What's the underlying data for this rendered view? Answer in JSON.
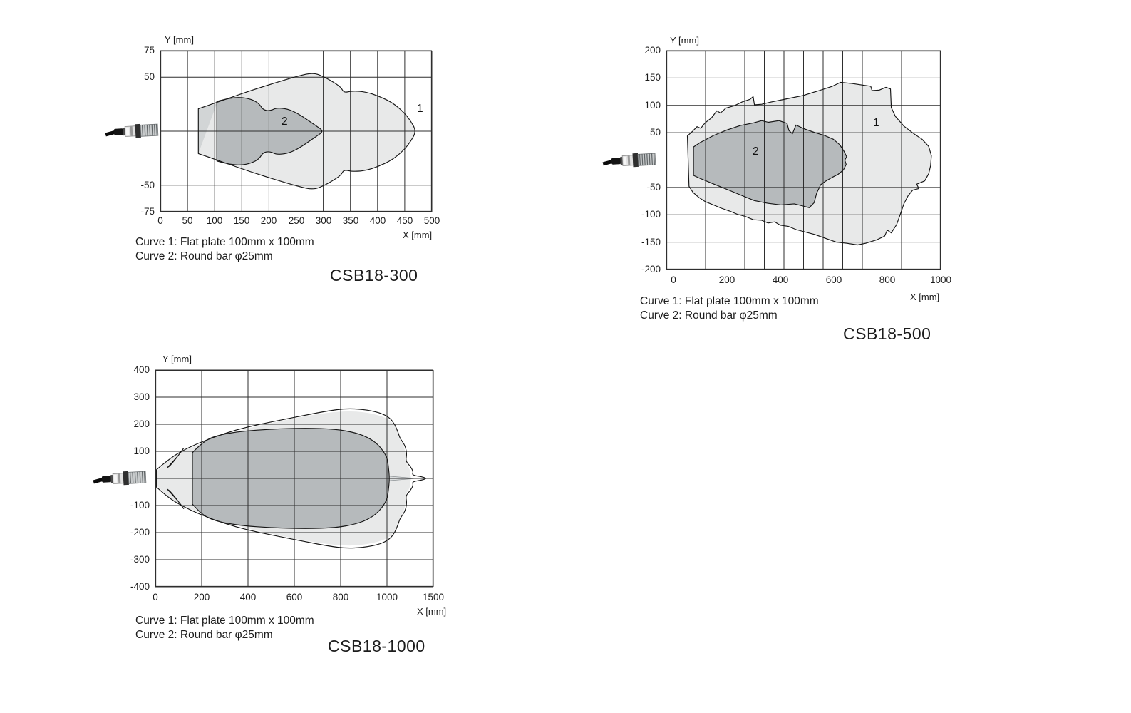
{
  "icons": {
    "sensor": "ultrasonic-sensor-side-photo"
  },
  "colors": {
    "curve1_fill": "#e8e9e9",
    "curve2_fill": "#b6babc",
    "near_zone_fill": "#d2d5d6",
    "spike_fill": "#dcdfe0",
    "grid": "#2e2e2e",
    "stroke": "#161616",
    "text": "#1c1c1c",
    "background": "#ffffff"
  },
  "chart_data": [
    {
      "title": "CSB18-300",
      "type": "area",
      "xlabel": "X [mm]",
      "ylabel": "Y [mm]",
      "xlim": [
        0,
        500
      ],
      "ylim": [
        -75,
        75
      ],
      "grid": "on",
      "legend_position": "none",
      "x_tick_labels": [
        "0",
        "50",
        "100",
        "150",
        "200",
        "250",
        "300",
        "350",
        "400",
        "450",
        "500"
      ],
      "y_tick_labels": [
        "75",
        "50",
        "-50",
        "-75"
      ],
      "caption": [
        "Curve 1: Flat plate 100mm x 100mm",
        "Curve 2: Round bar φ25mm"
      ],
      "series": [
        {
          "name": "Curve 1: Flat plate 100mm x 100mm",
          "label": "1",
          "symmetric": true,
          "pts": [
            [
              70,
              21
            ],
            [
              115,
              29
            ],
            [
              165,
              38
            ],
            [
              215,
              46
            ],
            [
              255,
              52
            ],
            [
              282,
              55
            ],
            [
              302,
              51
            ],
            [
              322,
              45
            ],
            [
              333,
              41
            ],
            [
              338,
              36
            ],
            [
              354,
              38
            ],
            [
              378,
              37
            ],
            [
              402,
              33
            ],
            [
              427,
              27
            ],
            [
              448,
              18
            ],
            [
              462,
              9
            ],
            [
              471,
              0
            ]
          ]
        },
        {
          "name": "near zone band",
          "label": "",
          "symmetric": true,
          "pts": [
            [
              70,
              21
            ],
            [
              104,
              26
            ]
          ]
        },
        {
          "name": "Curve 2: Round bar φ25mm",
          "label": "2",
          "symmetric": true,
          "pts": [
            [
              104,
              28
            ],
            [
              126,
              31
            ],
            [
              148,
              32
            ],
            [
              168,
              30
            ],
            [
              182,
              26
            ],
            [
              189,
              20
            ],
            [
              202,
              19
            ],
            [
              214,
              22
            ],
            [
              234,
              21
            ],
            [
              252,
              17
            ],
            [
              270,
              11
            ],
            [
              287,
              5
            ],
            [
              301,
              0
            ]
          ]
        }
      ]
    },
    {
      "title": "CSB18-500",
      "type": "area",
      "xlabel": "X [mm]",
      "ylabel": "Y [mm]",
      "xlim": [
        0,
        1000
      ],
      "ylim": [
        -200,
        200
      ],
      "grid": "on",
      "legend_position": "none",
      "x_tick_labels": [
        "0",
        "200",
        "400",
        "600",
        "800",
        "1000"
      ],
      "y_tick_labels": [
        "200",
        "150",
        "100",
        "50",
        "-50",
        "-100",
        "-150",
        "-200"
      ],
      "caption": [
        "Curve 1: Flat plate 100mm x 100mm",
        "Curve 2: Round bar φ25mm"
      ],
      "series": [
        {
          "name": "Curve 1: Flat plate 100mm x 100mm",
          "label": "1",
          "symmetric": false,
          "pts": [
            [
              52,
              44
            ],
            [
              70,
              52
            ],
            [
              88,
              61
            ],
            [
              102,
              58
            ],
            [
              118,
              68
            ],
            [
              142,
              77
            ],
            [
              162,
              90
            ],
            [
              176,
              86
            ],
            [
              196,
              95
            ],
            [
              226,
              99
            ],
            [
              256,
              106
            ],
            [
              286,
              111
            ],
            [
              298,
              116
            ],
            [
              303,
              101
            ],
            [
              330,
              102
            ],
            [
              365,
              106
            ],
            [
              425,
              112
            ],
            [
              485,
              118
            ],
            [
              545,
              127
            ],
            [
              595,
              135
            ],
            [
              625,
              142
            ],
            [
              668,
              140
            ],
            [
              710,
              137
            ],
            [
              738,
              135
            ],
            [
              743,
              127
            ],
            [
              770,
              128
            ],
            [
              795,
              133
            ],
            [
              812,
              130
            ],
            [
              815,
              96
            ],
            [
              830,
              80
            ],
            [
              862,
              62
            ],
            [
              900,
              48
            ],
            [
              930,
              38
            ],
            [
              955,
              25
            ],
            [
              965,
              8
            ],
            [
              962,
              -10
            ],
            [
              955,
              -25
            ],
            [
              940,
              -38
            ],
            [
              910,
              -44
            ],
            [
              918,
              -52
            ],
            [
              895,
              -55
            ],
            [
              878,
              -65
            ],
            [
              862,
              -80
            ],
            [
              848,
              -100
            ],
            [
              835,
              -118
            ],
            [
              815,
              -133
            ],
            [
              800,
              -128
            ],
            [
              790,
              -139
            ],
            [
              759,
              -146
            ],
            [
              719,
              -152
            ],
            [
              689,
              -155
            ],
            [
              649,
              -152
            ],
            [
              609,
              -150
            ],
            [
              569,
              -143
            ],
            [
              529,
              -136
            ],
            [
              489,
              -131
            ],
            [
              459,
              -127
            ],
            [
              429,
              -121
            ],
            [
              399,
              -119
            ],
            [
              379,
              -113
            ],
            [
              354,
              -115
            ],
            [
              329,
              -110
            ],
            [
              299,
              -109
            ],
            [
              269,
              -103
            ],
            [
              239,
              -99
            ],
            [
              209,
              -93
            ],
            [
              179,
              -88
            ],
            [
              149,
              -82
            ],
            [
              119,
              -76
            ],
            [
              94,
              -68
            ],
            [
              73,
              -59
            ],
            [
              58,
              -48
            ]
          ]
        },
        {
          "name": "Curve 2: Round bar φ25mm",
          "label": "2",
          "symmetric": false,
          "pts": [
            [
              75,
              24
            ],
            [
              100,
              32
            ],
            [
              150,
              45
            ],
            [
              200,
              55
            ],
            [
              250,
              63
            ],
            [
              300,
              68
            ],
            [
              330,
              72
            ],
            [
              355,
              69
            ],
            [
              395,
              72
            ],
            [
              425,
              67
            ],
            [
              432,
              54
            ],
            [
              445,
              48
            ],
            [
              458,
              64
            ],
            [
              490,
              57
            ],
            [
              530,
              50
            ],
            [
              565,
              45
            ],
            [
              598,
              38
            ],
            [
              622,
              28
            ],
            [
              638,
              16
            ],
            [
              648,
              6
            ],
            [
              641,
              0
            ],
            [
              646,
              -8
            ],
            [
              636,
              -18
            ],
            [
              616,
              -26
            ],
            [
              596,
              -31
            ],
            [
              571,
              -38
            ],
            [
              551,
              -45
            ],
            [
              536,
              -60
            ],
            [
              526,
              -78
            ],
            [
              508,
              -87
            ],
            [
              485,
              -84
            ],
            [
              452,
              -80
            ],
            [
              402,
              -82
            ],
            [
              352,
              -79
            ],
            [
              302,
              -74
            ],
            [
              252,
              -64
            ],
            [
              202,
              -54
            ],
            [
              152,
              -44
            ],
            [
              102,
              -34
            ],
            [
              75,
              -28
            ]
          ]
        }
      ]
    },
    {
      "title": "CSB18-1000",
      "type": "area",
      "xlabel": "X [mm]",
      "ylabel": "Y [mm]",
      "xlim": [
        0,
        1500
      ],
      "ylim": [
        -400,
        400
      ],
      "grid": "on",
      "legend_position": "none",
      "x_tick_labels": [
        "0",
        "200",
        "400",
        "600",
        "800",
        "1000",
        "1500"
      ],
      "y_tick_labels": [
        "400",
        "300",
        "200",
        "100",
        "-100",
        "-200",
        "-300",
        "-400"
      ],
      "caption": [
        "Curve 1: Flat plate 100mm x 100mm",
        "Curve 2: Round bar φ25mm"
      ],
      "series": [
        {
          "name": "Curve 1: Flat plate 100mm x 100mm (outer boundary)",
          "label": "",
          "symmetric": true,
          "pts": [
            [
              5,
              32
            ],
            [
              70,
              80
            ],
            [
              150,
              117
            ],
            [
              250,
              152
            ],
            [
              350,
              180
            ],
            [
              450,
              200
            ],
            [
              550,
              217
            ],
            [
              650,
              234
            ],
            [
              750,
              250
            ],
            [
              820,
              258
            ],
            [
              900,
              255
            ],
            [
              970,
              243
            ],
            [
              1030,
              224
            ],
            [
              1085,
              199
            ],
            [
              1120,
              170
            ],
            [
              1140,
              148
            ],
            [
              1195,
              122
            ],
            [
              1215,
              90
            ],
            [
              1200,
              64
            ],
            [
              1255,
              44
            ],
            [
              1285,
              24
            ],
            [
              1270,
              12
            ],
            [
              1380,
              6
            ],
            [
              1430,
              0
            ]
          ]
        },
        {
          "name": "Curve 1 inner filled region",
          "label": "",
          "symmetric": true,
          "pts": [
            [
              8,
              28
            ],
            [
              60,
              72
            ],
            [
              120,
              103
            ],
            [
              200,
              130
            ],
            [
              300,
              161
            ],
            [
              400,
              185
            ],
            [
              500,
              205
            ],
            [
              600,
              222
            ],
            [
              700,
              238
            ],
            [
              800,
              248
            ],
            [
              880,
              247
            ],
            [
              950,
              237
            ],
            [
              1020,
              220
            ],
            [
              1080,
              196
            ],
            [
              1110,
              172
            ],
            [
              1130,
              150
            ],
            [
              1180,
              122
            ],
            [
              1205,
              88
            ],
            [
              1195,
              62
            ],
            [
              1235,
              42
            ],
            [
              1255,
              22
            ],
            [
              1250,
              12
            ],
            [
              1265,
              0
            ]
          ]
        },
        {
          "name": "Curve 1 side lobe (top)",
          "label": "",
          "symmetric": false,
          "pts": [
            [
              52,
              40
            ],
            [
              80,
              66
            ],
            [
              108,
              94
            ],
            [
              126,
              116
            ],
            [
              112,
              100
            ],
            [
              88,
              72
            ],
            [
              62,
              46
            ]
          ]
        },
        {
          "name": "Curve 1 side lobe (bottom)",
          "label": "",
          "symmetric": false,
          "pts": [
            [
              52,
              -40
            ],
            [
              80,
              -66
            ],
            [
              108,
              -94
            ],
            [
              126,
              -116
            ],
            [
              112,
              -100
            ],
            [
              88,
              -72
            ],
            [
              62,
              -46
            ]
          ]
        },
        {
          "name": "Curve 2: Round bar φ25mm",
          "label": "",
          "symmetric": true,
          "pts": [
            [
              160,
              95
            ],
            [
              210,
              140
            ],
            [
              280,
              162
            ],
            [
              380,
              175
            ],
            [
              500,
              182
            ],
            [
              650,
              186
            ],
            [
              780,
              182
            ],
            [
              870,
              168
            ],
            [
              930,
              146
            ],
            [
              970,
              118
            ],
            [
              1000,
              80
            ],
            [
              1015,
              45
            ],
            [
              1028,
              0
            ]
          ]
        },
        {
          "name": "Curve 2 axial spike",
          "label": "",
          "symmetric": true,
          "pts": [
            [
              1000,
              9
            ],
            [
              1310,
              0
            ]
          ]
        }
      ]
    }
  ]
}
